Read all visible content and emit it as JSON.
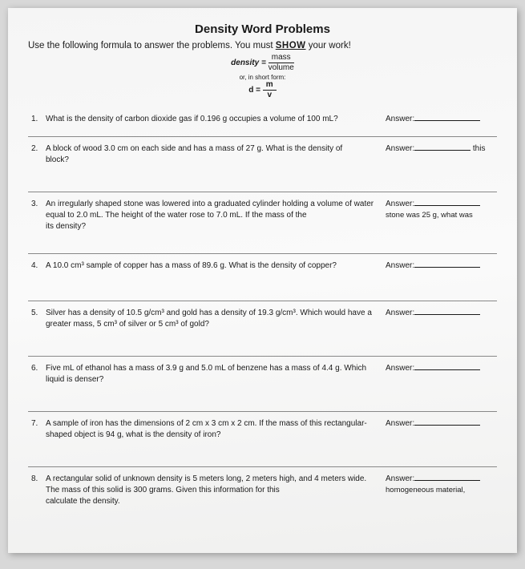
{
  "title": "Density Word Problems",
  "subtitle_prefix": "Use the following formula to answer the problems.  You must ",
  "subtitle_bold": "SHOW",
  "subtitle_suffix": " your work!",
  "formula_label": "density =",
  "formula_top": "mass",
  "formula_bot": "volume",
  "short_form_label": "or, in short form:",
  "short_d": "d =",
  "short_m": "m",
  "short_v": "v",
  "answer_label": "Answer:",
  "problems": [
    {
      "n": "1.",
      "q": "What is the density of carbon dioxide gas if 0.196 g occupies a volume of 100 mL?",
      "extra": ""
    },
    {
      "n": "2.",
      "q": "A block of wood 3.0 cm on each side and has a mass of 27 g.  What is the density of ",
      "q2": "block?",
      "extra": "this"
    },
    {
      "n": "3.",
      "q": "An irregularly shaped stone was lowered into a graduated cylinder holding a volume of water equal to 2.0 mL.  The height of the water rose to 7.0 mL.  If the mass of the ",
      "q2": "its density?",
      "extra": "stone was 25 g, what was"
    },
    {
      "n": "4.",
      "q": "A 10.0 cm³ sample of copper has a mass of 89.6 g.  What is the density of copper?",
      "extra": ""
    },
    {
      "n": "5.",
      "q": "Silver has a density of 10.5 g/cm³ and gold has a density of 19.3 g/cm³.  Which would have a greater mass, 5 cm³ of silver or 5 cm³ of gold?",
      "extra": ""
    },
    {
      "n": "6.",
      "q": "Five mL of ethanol has a mass of 3.9 g and 5.0 mL of benzene has a mass of 4.4 g.  Which liquid is denser?",
      "extra": ""
    },
    {
      "n": "7.",
      "q": "A sample of iron has the dimensions of 2 cm x 3 cm x 2 cm.  If the mass of this rectangular-shaped object is 94 g, what is the density of iron?",
      "extra": ""
    },
    {
      "n": "8.",
      "q": "A rectangular solid of unknown density is 5 meters long, 2 meters high, and 4 meters wide. The mass of this solid is 300 grams.  Given this information for this ",
      "q2": "calculate the density.",
      "extra": "homogeneous material,"
    }
  ]
}
